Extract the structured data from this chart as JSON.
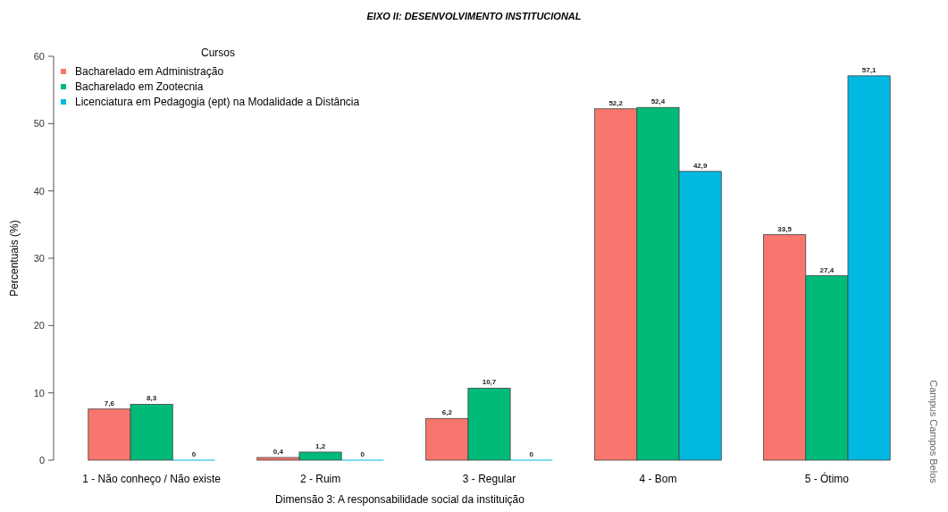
{
  "chart_data": {
    "type": "bar",
    "title": "EIXO II: DESENVOLVIMENTO INSTITUCIONAL",
    "xlabel": "Dimensão 3: A responsabilidade social da instituição",
    "ylabel": "Percentuais (%)",
    "legend_title": "Cursos",
    "categories": [
      "1 - Não conheço / Não existe",
      "2 - Ruim",
      "3 - Regular",
      "4 - Bom",
      "5 - Ótimo"
    ],
    "series": [
      {
        "name": "Bacharelado em Administração",
        "color": "#f8766d",
        "values": [
          7.6,
          0.4,
          6.2,
          52.2,
          33.5
        ],
        "value_labels": [
          "7,6",
          "0,4",
          "6,2",
          "52,2",
          "33,5"
        ]
      },
      {
        "name": "Bacharelado em Zootecnia",
        "color": "#00ba78",
        "values": [
          8.3,
          1.2,
          10.7,
          52.4,
          27.4
        ],
        "value_labels": [
          "8,3",
          "1,2",
          "10,7",
          "52,4",
          "27,4"
        ]
      },
      {
        "name": "Licenciatura em Pedagogia (ept) na Modalidade a Distância",
        "color": "#00b8e0",
        "values": [
          0,
          0,
          0,
          42.9,
          57.1
        ],
        "value_labels": [
          "0",
          "0",
          "0",
          "42,9",
          "57,1"
        ]
      }
    ],
    "ylim": [
      0,
      60
    ],
    "yticks": [
      0,
      10,
      20,
      30,
      40,
      50,
      60
    ],
    "grid": false,
    "legend": "top left",
    "annotations": [
      "Campus Campos Belos"
    ]
  }
}
